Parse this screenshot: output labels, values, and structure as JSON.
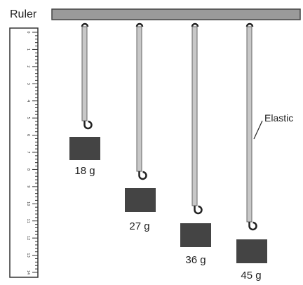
{
  "ruler_label": "Ruler",
  "elastic_label": "Elastic",
  "ruler_ticks": [
    "0",
    "1",
    "2",
    "3",
    "4",
    "5",
    "6",
    "7",
    "8",
    "9",
    "10",
    "11",
    "12",
    "13",
    "14"
  ],
  "masses": [
    {
      "label": "18 g"
    },
    {
      "label": "27 g"
    },
    {
      "label": "36 g"
    },
    {
      "label": "45 g"
    }
  ],
  "colors": {
    "bar": "#9a9a9a",
    "elastic": "#c8c8c8",
    "weight": "#444444",
    "hook": "#222222"
  }
}
